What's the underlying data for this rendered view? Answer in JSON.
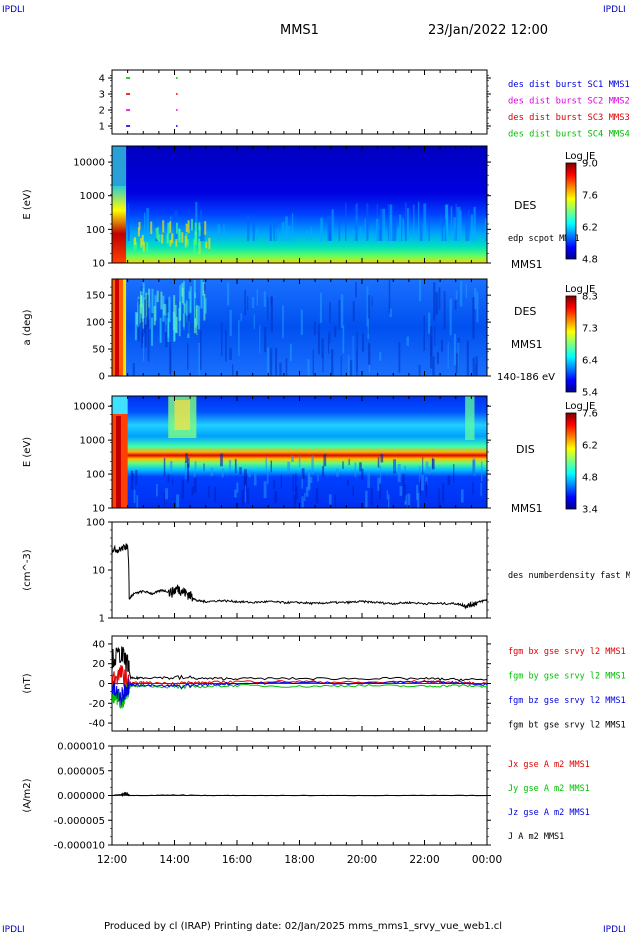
{
  "header": {
    "corner_left": "IPDLI",
    "corner_right": "IPDLI",
    "spacecraft": "MMS1",
    "date": "23/Jan/2022 12:00"
  },
  "footer": {
    "text": "Produced by cl (IRAP)   Printing date: 02/Jan/2025   mms_mms1_srvy_vue_web1.cl",
    "corner_left": "IPDLI",
    "corner_right": "IPDLI"
  },
  "colors": {
    "red": "#e00000",
    "green": "#00c000",
    "blue": "#0000e0",
    "magenta": "#e000e0",
    "black": "#000000",
    "corner": "#0000c0"
  },
  "time_axis": {
    "ticks": [
      "12:00",
      "14:00",
      "16:00",
      "18:00",
      "20:00",
      "22:00",
      "00:00"
    ],
    "start_hour": 12,
    "end_hour": 24
  },
  "chart_data": [
    {
      "type": "scatter",
      "panel": "burst",
      "y_ticks": [
        "1",
        "2",
        "3",
        "4"
      ],
      "ylim": [
        0.5,
        4.5
      ],
      "legend": [
        {
          "label": "des dist burst SC1 MMS1",
          "color": "#0000e0"
        },
        {
          "label": "des dist burst SC2 MMS2",
          "color": "#e000e0"
        },
        {
          "label": "des dist burst SC3 MMS3",
          "color": "#e00000"
        },
        {
          "label": "des dist burst SC4 MMS4",
          "color": "#00c000"
        }
      ],
      "series": [
        {
          "sc": 1,
          "x": [
            12.45,
            14.05
          ],
          "color": "#0000e0"
        },
        {
          "sc": 2,
          "x": [
            12.45,
            14.05
          ],
          "color": "#e000e0"
        },
        {
          "sc": 3,
          "x": [
            12.45,
            14.05
          ],
          "color": "#e00000"
        },
        {
          "sc": 4,
          "x": [
            12.45,
            14.05
          ],
          "color": "#00c000"
        }
      ]
    },
    {
      "type": "heatmap",
      "panel": "des_energy",
      "ylabel": "E (eV)",
      "y_ticks": [
        "10",
        "100",
        "1000",
        "10000"
      ],
      "log_y": true,
      "ylim": [
        10,
        30000
      ],
      "label_right": "DES",
      "label_right_2": "edp scpot MMS1",
      "label_right_3": "MMS1",
      "colorbar": {
        "title": "Log JE",
        "ticks": [
          "9.0",
          "7.6",
          "6.2",
          "4.8"
        ],
        "range": [
          4.8,
          9.0
        ]
      }
    },
    {
      "type": "heatmap",
      "panel": "des_pitch",
      "ylabel": "a (deg)",
      "y_ticks": [
        "0",
        "50",
        "100",
        "150"
      ],
      "ylim": [
        0,
        180
      ],
      "label_right": "DES",
      "label_right_2": "MMS1",
      "label_right_3": "140-186 eV",
      "colorbar": {
        "title": "Log JE",
        "ticks": [
          "8.3",
          "7.3",
          "6.4",
          "5.4"
        ],
        "range": [
          5.4,
          8.3
        ]
      }
    },
    {
      "type": "heatmap",
      "panel": "dis_energy",
      "ylabel": "E (eV)",
      "y_ticks": [
        "10",
        "100",
        "1000",
        "10000"
      ],
      "log_y": true,
      "ylim": [
        10,
        20000
      ],
      "label_right": "DIS",
      "label_right_2": "MMS1",
      "colorbar": {
        "title": "Log JE",
        "ticks": [
          "7.6",
          "6.2",
          "4.8",
          "3.4"
        ],
        "range": [
          3.4,
          7.6
        ]
      }
    },
    {
      "type": "line",
      "panel": "density",
      "ylabel": "(cm^-3)",
      "y_ticks": [
        "1",
        "10",
        "100"
      ],
      "log_y": true,
      "ylim": [
        1,
        100
      ],
      "label_right": "des numberdensity fast M",
      "series": [
        {
          "name": "des numberdensity fast M",
          "color": "#000000",
          "x": [
            12.0,
            12.2,
            12.4,
            12.5,
            12.55,
            12.7,
            13.0,
            13.3,
            13.6,
            13.9,
            14.1,
            14.3,
            14.5,
            14.7,
            15.0,
            15.5,
            16.0,
            16.5,
            17.0,
            17.5,
            18.0,
            18.5,
            19.0,
            19.5,
            20.0,
            20.5,
            21.0,
            21.5,
            22.0,
            22.5,
            23.0,
            23.3,
            23.5,
            23.7,
            24.0
          ],
          "y": [
            28,
            26,
            30,
            32,
            2.5,
            3.2,
            3.6,
            3.2,
            3.8,
            3.4,
            4.2,
            3.5,
            3.0,
            2.3,
            2.2,
            2.3,
            2.2,
            2.1,
            2.2,
            2.1,
            2.1,
            2.0,
            2.1,
            2.1,
            2.2,
            2.1,
            2.0,
            2.1,
            2.0,
            2.0,
            2.0,
            1.8,
            1.9,
            2.1,
            2.4
          ]
        }
      ]
    },
    {
      "type": "line",
      "panel": "magnetic_field",
      "ylabel": "(nT)",
      "y_ticks": [
        "-40",
        "-20",
        "0",
        "20",
        "40"
      ],
      "ylim": [
        -48,
        48
      ],
      "legend": [
        {
          "label": "fgm bx gse srvy l2 MMS1",
          "color": "#e00000"
        },
        {
          "label": "fgm by gse srvy l2 MMS1",
          "color": "#00c000"
        },
        {
          "label": "fgm bz gse srvy l2 MMS1",
          "color": "#0000e0"
        },
        {
          "label": "fgm bt gse srvy l2 MMS1",
          "color": "#000000"
        }
      ],
      "series": [
        {
          "name": "fgm bx gse srvy l2 MMS1",
          "color": "#e00000",
          "x": [
            12.0,
            12.3,
            12.5,
            12.6,
            13.0,
            14.0,
            15.0,
            16.0,
            18.0,
            20.0,
            22.0,
            23.0,
            24.0
          ],
          "y": [
            5,
            10,
            2,
            0,
            1,
            0,
            1,
            2,
            2,
            1,
            2,
            1,
            0
          ]
        },
        {
          "name": "fgm by gse srvy l2 MMS1",
          "color": "#00c000",
          "x": [
            12.0,
            12.3,
            12.5,
            12.6,
            13.0,
            14.0,
            15.0,
            16.0,
            18.0,
            20.0,
            22.0,
            23.0,
            24.0
          ],
          "y": [
            -10,
            -20,
            -5,
            -3,
            -2,
            -4,
            -3,
            -2,
            -3,
            -2,
            -3,
            -2,
            -3
          ]
        },
        {
          "name": "fgm bz gse srvy l2 MMS1",
          "color": "#0000e0",
          "x": [
            12.0,
            12.3,
            12.5,
            12.6,
            13.0,
            14.0,
            15.0,
            16.0,
            18.0,
            20.0,
            22.0,
            23.0,
            24.0
          ],
          "y": [
            -5,
            -15,
            -2,
            -1,
            -2,
            -3,
            -1,
            0,
            1,
            0,
            2,
            1,
            -1
          ]
        },
        {
          "name": "fgm bt gse srvy l2 MMS1",
          "color": "#000000",
          "x": [
            12.0,
            12.3,
            12.5,
            12.6,
            13.0,
            14.0,
            15.0,
            16.0,
            18.0,
            20.0,
            22.0,
            23.0,
            24.0
          ],
          "y": [
            25,
            30,
            20,
            5,
            6,
            6,
            5,
            5,
            5,
            5,
            5,
            4,
            4
          ]
        }
      ]
    },
    {
      "type": "line",
      "panel": "current_density",
      "ylabel": "(A/m2)",
      "y_ticks": [
        "-0.000010",
        "-0.000005",
        "0.000000",
        "0.000005",
        "0.000010"
      ],
      "ylim": [
        -1e-05,
        1e-05
      ],
      "legend": [
        {
          "label": "Jx gse A m2 MMS1",
          "color": "#e00000"
        },
        {
          "label": "Jy gse A m2 MMS1",
          "color": "#00c000"
        },
        {
          "label": "Jz gse A m2 MMS1",
          "color": "#0000e0"
        },
        {
          "label": "J A m2 MMS1",
          "color": "#000000"
        }
      ],
      "series": [
        {
          "name": "J A m2 MMS1",
          "color": "#000000",
          "x": [
            12.0,
            12.3,
            12.45,
            12.55,
            13.0,
            14.0,
            15.0,
            16.0,
            18.0,
            20.0,
            22.0,
            24.0
          ],
          "y": [
            0,
            2e-07,
            4e-07,
            0,
            0,
            1e-07,
            0,
            0,
            0,
            0,
            0,
            0
          ]
        }
      ]
    }
  ]
}
